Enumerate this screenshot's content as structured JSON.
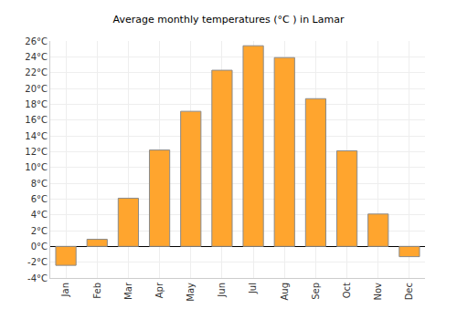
{
  "chart_data": {
    "type": "bar",
    "title": "Average monthly temperatures (°C ) in Lamar",
    "categories": [
      "Jan",
      "Feb",
      "Mar",
      "Apr",
      "May",
      "Jun",
      "Jul",
      "Aug",
      "Sep",
      "Oct",
      "Nov",
      "Dec"
    ],
    "values": [
      -2.4,
      0.9,
      6.1,
      12.2,
      17.1,
      22.3,
      25.4,
      23.9,
      18.7,
      12.1,
      4.1,
      -1.3
    ],
    "color": "#ffa52e",
    "ylim": [
      -4,
      26
    ],
    "yticks": [
      {
        "value": -4,
        "label": "-4°C"
      },
      {
        "value": -2,
        "label": "-2°C"
      },
      {
        "value": 0,
        "label": "0°C"
      },
      {
        "value": 2,
        "label": "2°C"
      },
      {
        "value": 4,
        "label": "4°C"
      },
      {
        "value": 6,
        "label": "6°C"
      },
      {
        "value": 8,
        "label": "8°C"
      },
      {
        "value": 10,
        "label": "10°C"
      },
      {
        "value": 12,
        "label": "12°C"
      },
      {
        "value": 14,
        "label": "14°C"
      },
      {
        "value": 16,
        "label": "16°C"
      },
      {
        "value": 18,
        "label": "18°C"
      },
      {
        "value": 20,
        "label": "20°C"
      },
      {
        "value": 22,
        "label": "22°C"
      },
      {
        "value": 24,
        "label": "24°C"
      },
      {
        "value": 26,
        "label": "26°C"
      }
    ],
    "grid": true
  }
}
